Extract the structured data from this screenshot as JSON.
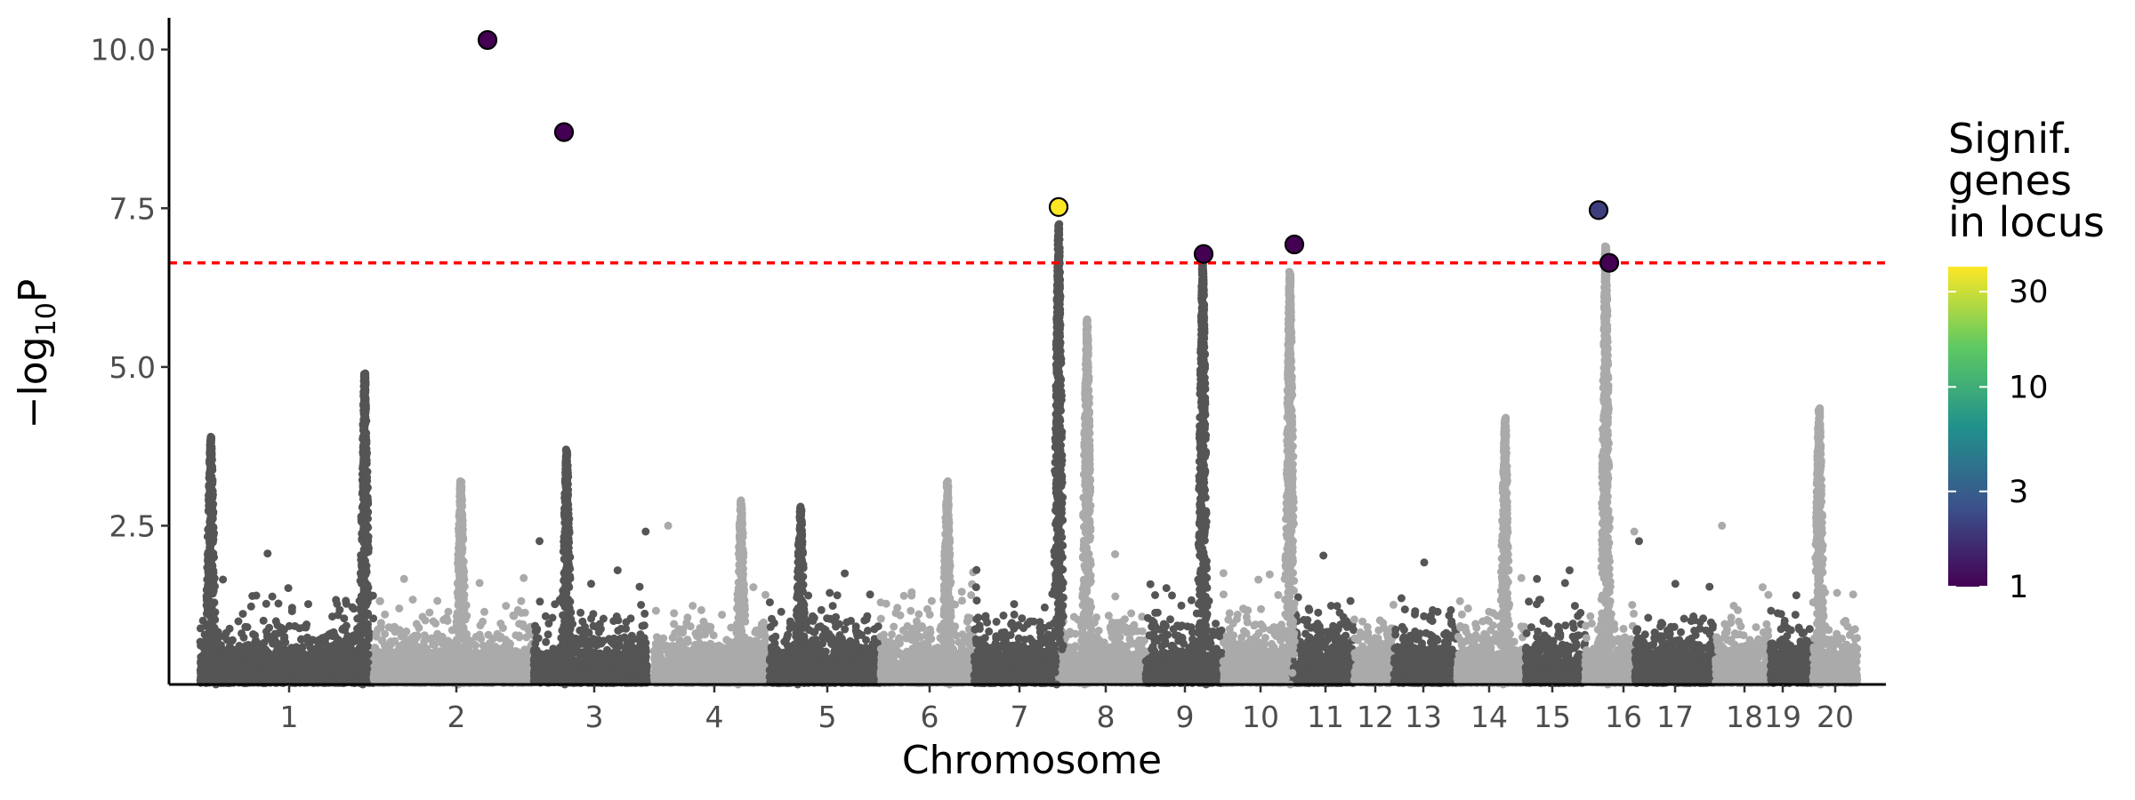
{
  "chart_data": {
    "type": "scatter",
    "subtype": "manhattan",
    "xlabel": "Chromosome",
    "ylabel": "−log10P",
    "ylim": [
      0,
      10.5
    ],
    "y_ticks": [
      "2.5",
      "5.0",
      "7.5",
      "10.0"
    ],
    "y_tick_values": [
      2.5,
      5.0,
      7.5,
      10.0
    ],
    "chromosomes": [
      "1",
      "2",
      "3",
      "4",
      "5",
      "6",
      "7",
      "8",
      "9",
      "10",
      "11",
      "12",
      "13",
      "14",
      "15",
      "16",
      "17",
      "18",
      "19",
      "20"
    ],
    "chromosome_colors": [
      "#555555",
      "#aaaaaa"
    ],
    "significance_threshold": 6.64,
    "threshold_color": "#ff0000",
    "peaks": [
      {
        "chrom": "1",
        "max": 3.9
      },
      {
        "chrom": "1",
        "max": 4.9
      },
      {
        "chrom": "2",
        "max": 3.2
      },
      {
        "chrom": "3",
        "max": 3.7
      },
      {
        "chrom": "4",
        "max": 2.9
      },
      {
        "chrom": "5",
        "max": 2.8
      },
      {
        "chrom": "6",
        "max": 3.2
      },
      {
        "chrom": "7",
        "max": 7.25
      },
      {
        "chrom": "8",
        "max": 5.75
      },
      {
        "chrom": "9",
        "max": 6.7
      },
      {
        "chrom": "10",
        "max": 6.5
      },
      {
        "chrom": "14",
        "max": 4.2
      },
      {
        "chrom": "16",
        "max": 6.9
      },
      {
        "chrom": "20",
        "max": 4.35
      }
    ],
    "highlighted_loci": [
      {
        "chrom": "2",
        "y": 10.15,
        "signif_genes": 1
      },
      {
        "chrom": "3",
        "y": 8.7,
        "signif_genes": 1
      },
      {
        "chrom": "7",
        "y": 7.52,
        "signif_genes": 40
      },
      {
        "chrom": "9",
        "y": 6.78,
        "signif_genes": 1
      },
      {
        "chrom": "11",
        "y": 6.93,
        "signif_genes": 1
      },
      {
        "chrom": "15",
        "y": 7.47,
        "signif_genes": 2
      },
      {
        "chrom": "16",
        "y": 6.64,
        "signif_genes": 1
      }
    ],
    "legend": {
      "title_lines": [
        "Signif.",
        "genes",
        "in locus"
      ],
      "scale": "log",
      "labels": [
        "1",
        "3",
        "10",
        "30"
      ],
      "values": [
        1,
        3,
        10,
        30
      ],
      "colors": [
        "#440154",
        "#3b528b",
        "#21918c",
        "#5ec962",
        "#fde725"
      ]
    }
  }
}
